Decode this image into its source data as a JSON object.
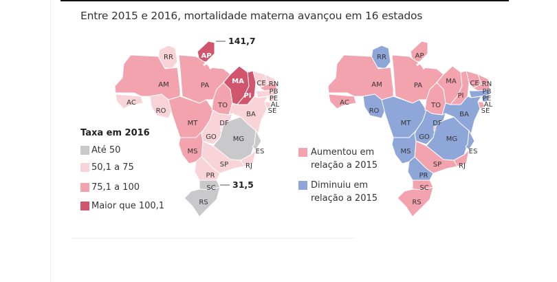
{
  "title": "Entre 2015 e 2016, mortalidade materna avançou em 16 estados",
  "colors": {
    "ate50": "#c9c9cc",
    "r50_75": "#f8d4d8",
    "r75_100": "#f2a3ad",
    "maior100": "#d1566d",
    "aumentou": "#f2a3ad",
    "diminuiu": "#8ea7d8"
  },
  "legend_2016": {
    "title": "Taxa em 2016",
    "items": [
      {
        "key": "ate50",
        "label": "Até 50"
      },
      {
        "key": "r50_75",
        "label": "50,1 a 75"
      },
      {
        "key": "r75_100",
        "label": "75,1 a 100"
      },
      {
        "key": "maior100",
        "label": "Maior que 100,1"
      }
    ]
  },
  "legend_change": {
    "items": [
      {
        "key": "aumentou",
        "line1": "Aumentou em",
        "line2": "relação a 2015"
      },
      {
        "key": "diminuiu",
        "line1": "Diminuiu em",
        "line2": "relação a 2015"
      }
    ]
  },
  "callouts": {
    "max": "141,7",
    "min": "31,5"
  },
  "states": [
    {
      "code": "RR",
      "rate": "r50_75",
      "change": "diminuiu"
    },
    {
      "code": "AP",
      "rate": "maior100",
      "change": "aumentou"
    },
    {
      "code": "AM",
      "rate": "r75_100",
      "change": "aumentou"
    },
    {
      "code": "PA",
      "rate": "r75_100",
      "change": "aumentou"
    },
    {
      "code": "AC",
      "rate": "r50_75",
      "change": "aumentou"
    },
    {
      "code": "RO",
      "rate": "r50_75",
      "change": "diminuiu"
    },
    {
      "code": "MT",
      "rate": "r75_100",
      "change": "diminuiu"
    },
    {
      "code": "TO",
      "rate": "r75_100",
      "change": "aumentou"
    },
    {
      "code": "MA",
      "rate": "maior100",
      "change": "aumentou"
    },
    {
      "code": "PI",
      "rate": "maior100",
      "change": "aumentou"
    },
    {
      "code": "CE",
      "rate": "r50_75",
      "change": "aumentou"
    },
    {
      "code": "RN",
      "rate": "r50_75",
      "change": "aumentou"
    },
    {
      "code": "PB",
      "rate": "r75_100",
      "change": "aumentou"
    },
    {
      "code": "PE",
      "rate": "r50_75",
      "change": "diminuiu"
    },
    {
      "code": "AL",
      "rate": "r50_75",
      "change": "diminuiu"
    },
    {
      "code": "SE",
      "rate": "r50_75",
      "change": "aumentou"
    },
    {
      "code": "BA",
      "rate": "r50_75",
      "change": "diminuiu"
    },
    {
      "code": "GO",
      "rate": "r50_75",
      "change": "diminuiu"
    },
    {
      "code": "DF",
      "rate": "r50_75",
      "change": "aumentou"
    },
    {
      "code": "MG",
      "rate": "ate50",
      "change": "diminuiu"
    },
    {
      "code": "ES",
      "rate": "ate50",
      "change": "diminuiu"
    },
    {
      "code": "RJ",
      "rate": "r50_75",
      "change": "aumentou"
    },
    {
      "code": "SP",
      "rate": "r50_75",
      "change": "aumentou"
    },
    {
      "code": "MS",
      "rate": "r75_100",
      "change": "diminuiu"
    },
    {
      "code": "PR",
      "rate": "r50_75",
      "change": "diminuiu"
    },
    {
      "code": "SC",
      "rate": "ate50",
      "change": "aumentou"
    },
    {
      "code": "RS",
      "rate": "ate50",
      "change": "aumentou"
    }
  ]
}
